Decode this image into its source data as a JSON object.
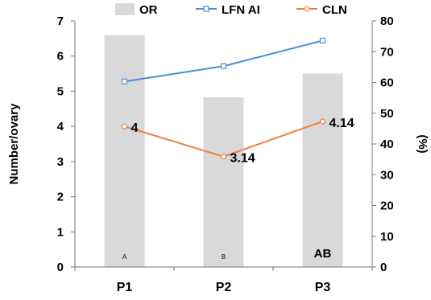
{
  "chart_data": {
    "type": "bar",
    "categories": [
      "P1",
      "P2",
      "P3"
    ],
    "ylabel": "Number/ovary",
    "y2label": "(%)",
    "ylim": [
      0,
      7
    ],
    "y2lim": [
      0,
      80
    ],
    "yticks": [
      "0",
      "1",
      "2",
      "3",
      "4",
      "5",
      "6",
      "7"
    ],
    "y2ticks": [
      "0",
      "10",
      "20",
      "30",
      "40",
      "50",
      "60",
      "70",
      "80"
    ],
    "grid": false,
    "legend_position": "top",
    "series": [
      {
        "name": "OR",
        "kind": "bar",
        "axis": "left",
        "color": "#d9d9d9",
        "values": [
          6.6,
          4.83,
          5.5
        ],
        "labels": [
          "A",
          "B",
          "AB"
        ]
      },
      {
        "name": "LFN AI",
        "kind": "line",
        "axis": "right",
        "color": "#4a8ed4",
        "marker": "square",
        "values": [
          60.3,
          65.3,
          73.6
        ]
      },
      {
        "name": "CLN",
        "kind": "line",
        "axis": "left",
        "color": "#f07f3c",
        "marker": "circle",
        "values": [
          4,
          3.14,
          4.14
        ],
        "labels": [
          "4",
          "3.14",
          "4.14"
        ]
      }
    ]
  }
}
